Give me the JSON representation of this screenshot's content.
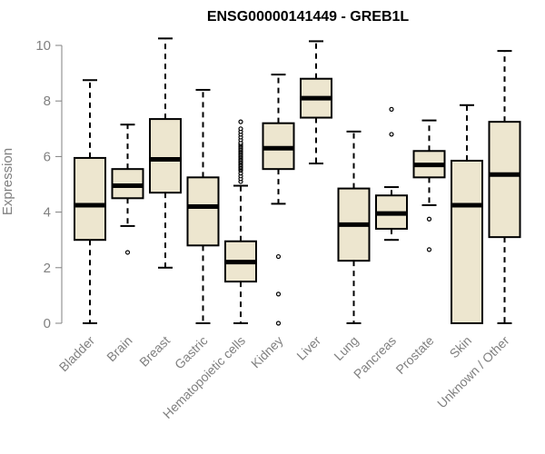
{
  "chart_data": {
    "type": "boxplot",
    "title": "ENSG00000141449 - GREB1L",
    "xlabel": "",
    "ylabel": "Expression",
    "ylim": [
      0,
      10.3
    ],
    "yticks": [
      0,
      2,
      4,
      6,
      8,
      10
    ],
    "grid": false,
    "colors": {
      "box_fill": "#ede6cf",
      "box_stroke": "#000000",
      "median": "#000000",
      "axis": "#808080",
      "tick_label": "#808080",
      "title": "#000000"
    },
    "categories": [
      "Bladder",
      "Brain",
      "Breast",
      "Gastric",
      "Hematopoietic cells",
      "Kidney",
      "Liver",
      "Lung",
      "Pancreas",
      "Prostate",
      "Skin",
      "Unknown / Other"
    ],
    "boxes": [
      {
        "name": "Bladder",
        "whisker_low": 0,
        "q1": 3.0,
        "median": 4.25,
        "q3": 5.95,
        "whisker_high": 8.75,
        "outliers": []
      },
      {
        "name": "Brain",
        "whisker_low": 3.5,
        "q1": 4.5,
        "median": 4.95,
        "q3": 5.55,
        "whisker_high": 7.15,
        "outliers": [
          2.55
        ]
      },
      {
        "name": "Breast",
        "whisker_low": 2.0,
        "q1": 4.7,
        "median": 5.9,
        "q3": 7.35,
        "whisker_high": 10.25,
        "outliers": []
      },
      {
        "name": "Gastric",
        "whisker_low": 0,
        "q1": 2.8,
        "median": 4.2,
        "q3": 5.25,
        "whisker_high": 8.4,
        "outliers": []
      },
      {
        "name": "Hematopoietic cells",
        "whisker_low": 0,
        "q1": 1.5,
        "median": 2.2,
        "q3": 2.95,
        "whisker_high": 4.95,
        "outliers": [
          5.1,
          5.2,
          5.3,
          5.4,
          5.5,
          5.55,
          5.6,
          5.65,
          5.7,
          5.75,
          5.8,
          5.85,
          5.9,
          5.95,
          6.0,
          6.05,
          6.1,
          6.15,
          6.2,
          6.25,
          6.3,
          6.35,
          6.4,
          6.45,
          6.5,
          6.6,
          6.7,
          6.8,
          6.9,
          7.0,
          7.25
        ]
      },
      {
        "name": "Kidney",
        "whisker_low": 4.3,
        "q1": 5.55,
        "median": 6.3,
        "q3": 7.2,
        "whisker_high": 8.95,
        "outliers": [
          2.4,
          1.05,
          0
        ]
      },
      {
        "name": "Liver",
        "whisker_low": 5.75,
        "q1": 7.4,
        "median": 8.1,
        "q3": 8.8,
        "whisker_high": 10.15,
        "outliers": []
      },
      {
        "name": "Lung",
        "whisker_low": 0,
        "q1": 2.25,
        "median": 3.55,
        "q3": 4.85,
        "whisker_high": 6.9,
        "outliers": []
      },
      {
        "name": "Pancreas",
        "whisker_low": 3.0,
        "q1": 3.4,
        "median": 3.95,
        "q3": 4.6,
        "whisker_high": 4.9,
        "outliers": [
          7.7,
          6.8
        ]
      },
      {
        "name": "Prostate",
        "whisker_low": 4.25,
        "q1": 5.25,
        "median": 5.7,
        "q3": 6.2,
        "whisker_high": 7.3,
        "outliers": [
          3.75,
          2.65
        ]
      },
      {
        "name": "Skin",
        "whisker_low": 0,
        "q1": 0,
        "median": 4.25,
        "q3": 5.85,
        "whisker_high": 7.85,
        "outliers": []
      },
      {
        "name": "Unknown / Other",
        "whisker_low": 0,
        "q1": 3.1,
        "median": 5.35,
        "q3": 7.25,
        "whisker_high": 9.8,
        "outliers": []
      }
    ]
  }
}
